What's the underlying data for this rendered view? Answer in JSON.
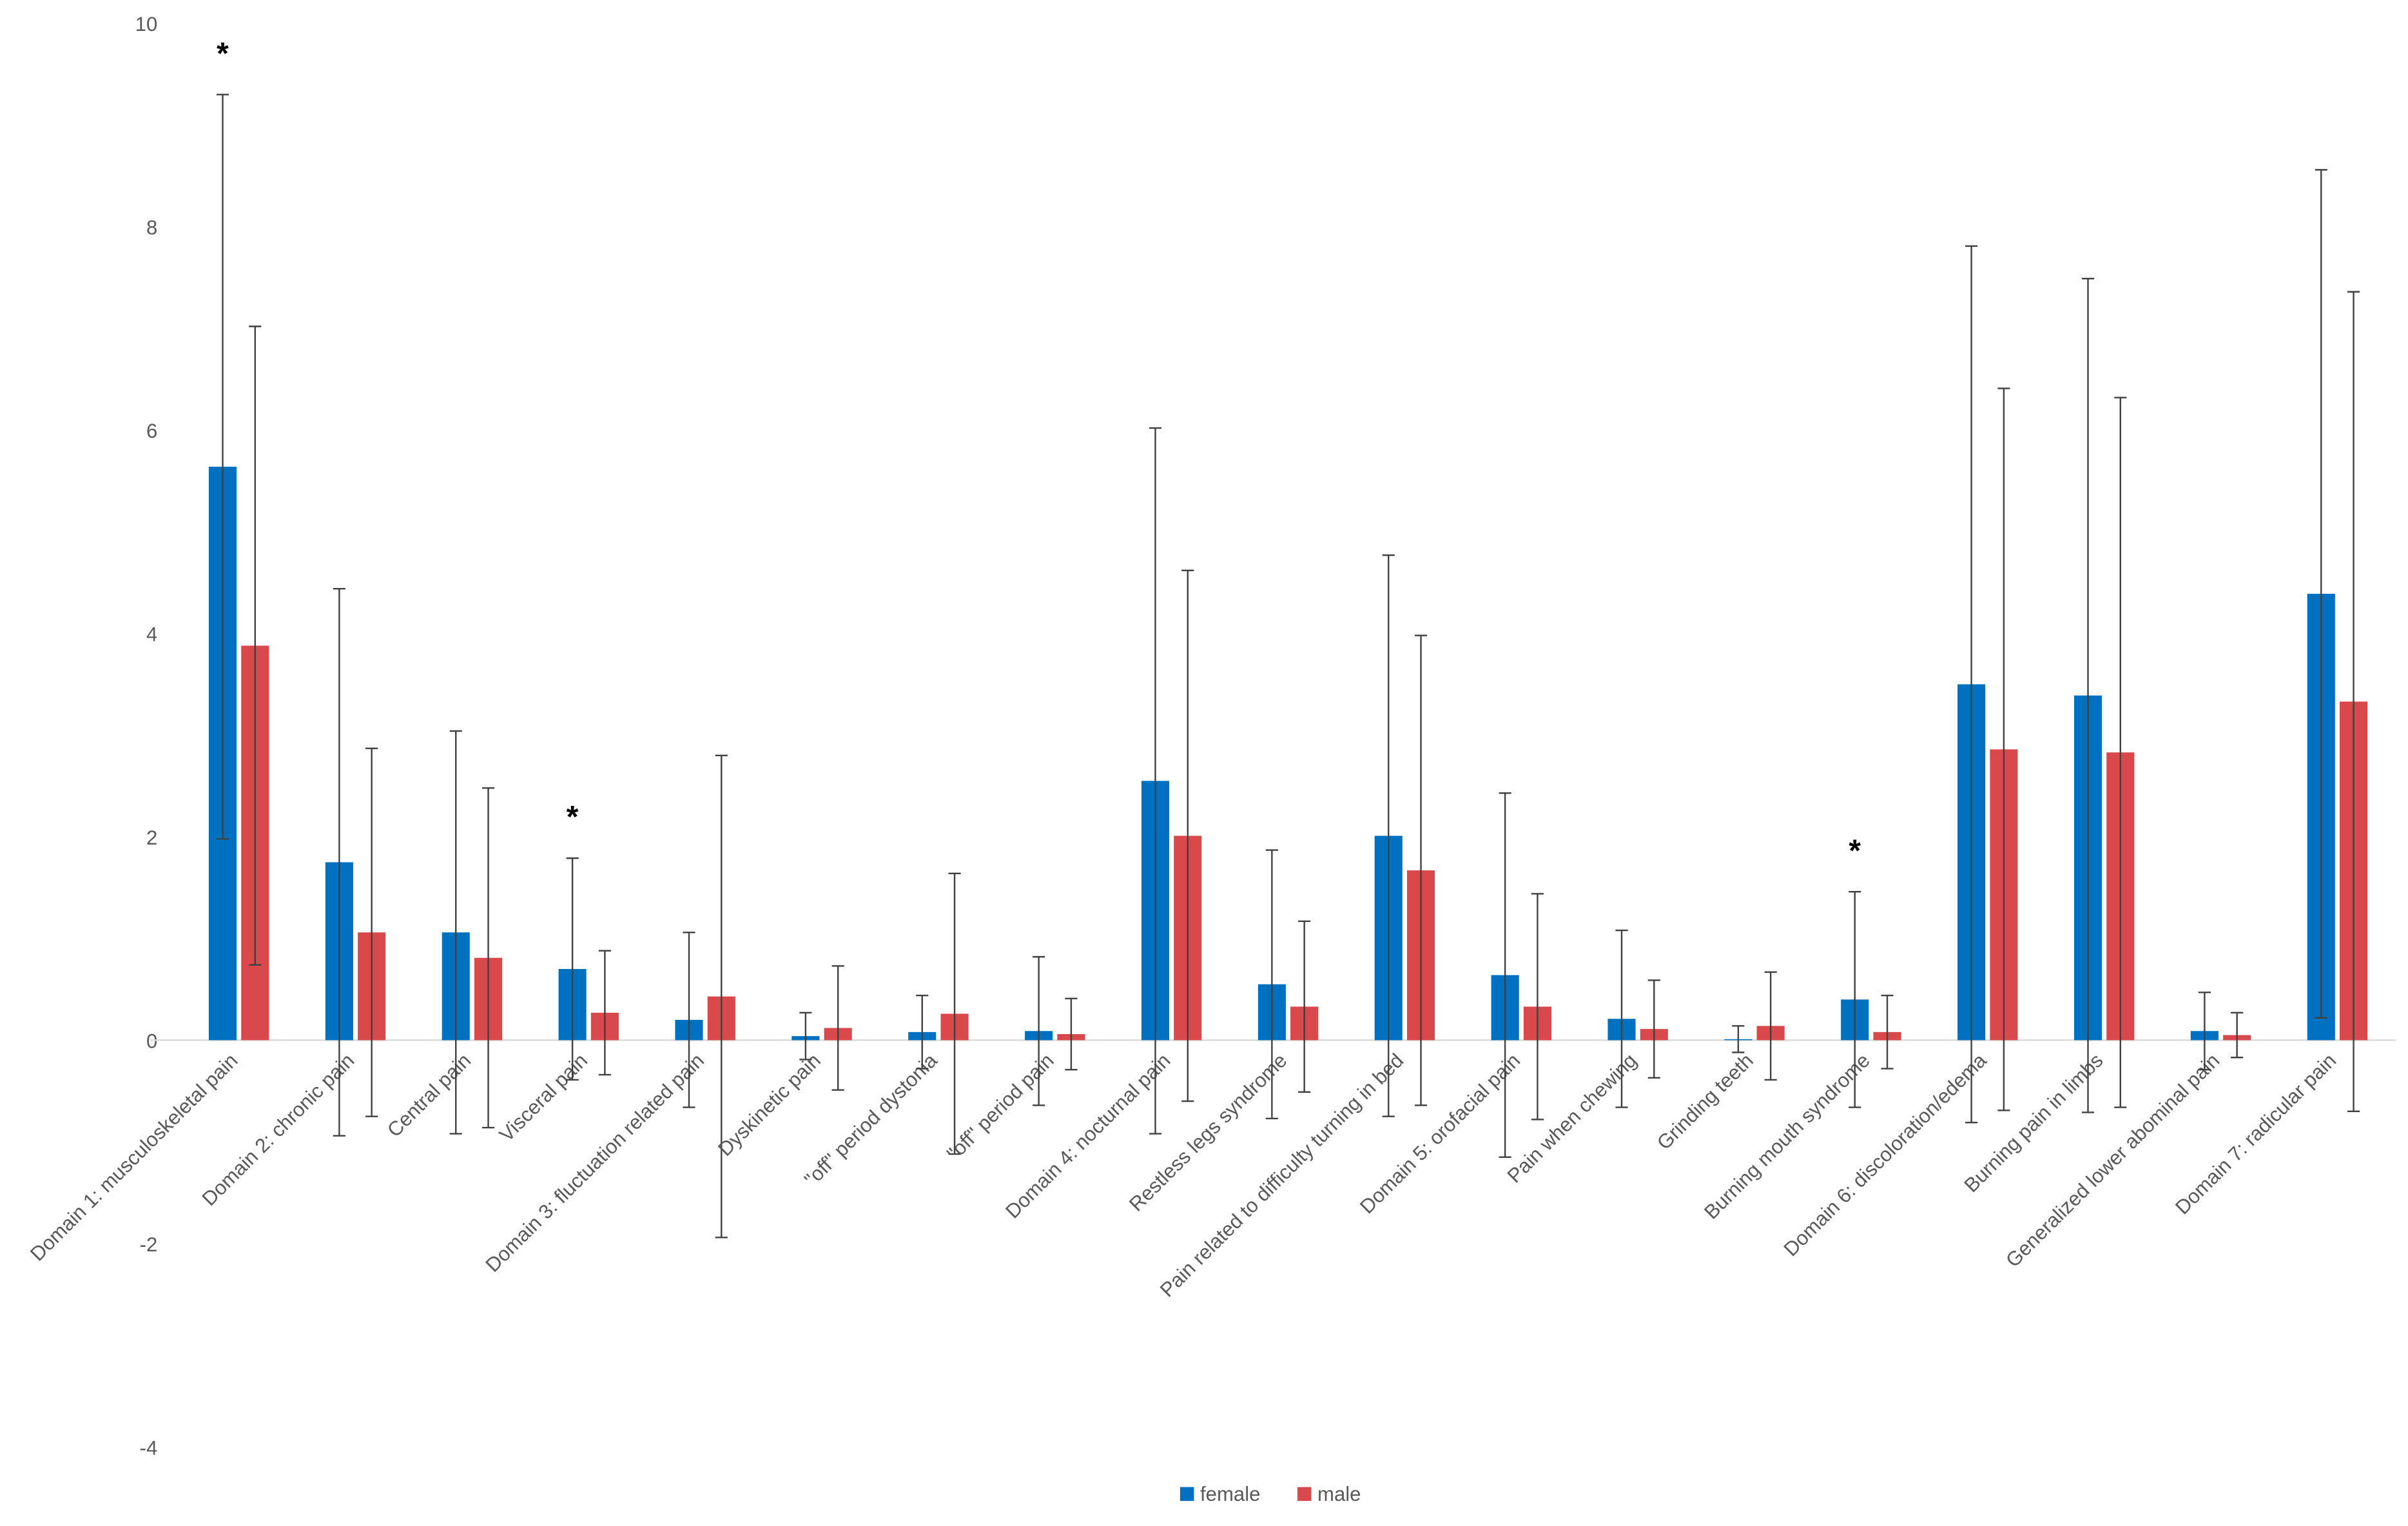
{
  "chart_data": {
    "type": "bar",
    "categories": [
      "Domain 1: musculoskeletal pain",
      "Domain 2: chronic pain",
      "Central pain",
      "Visceral pain",
      "Domain 3: fluctuation related pain",
      "Dyskinetic pain",
      "\"off\" period dystonia",
      "\"off\" period pain",
      "Domain 4: nocturnal pain",
      "Restless legs syndrome",
      "Pain related to difficulty turning in bed",
      "Domain 5: orofacial pain",
      "Pain when chewing",
      "Grinding teeth",
      "Burning mouth syndrome",
      "Domain 6: discoloration/edema",
      "Burning pain in limbs",
      "Generalized lower abominal pain",
      "Domain 7: radicular pain"
    ],
    "series": [
      {
        "name": "female",
        "color": "#0070c0",
        "values": [
          5.64,
          1.75,
          1.06,
          0.7,
          0.2,
          0.04,
          0.08,
          0.09,
          2.55,
          0.55,
          2.01,
          0.64,
          0.21,
          0.01,
          0.4,
          3.5,
          3.39,
          0.09,
          4.39
        ],
        "errors": [
          3.66,
          2.69,
          1.98,
          1.09,
          0.86,
          0.23,
          0.36,
          0.73,
          3.47,
          1.32,
          2.76,
          1.79,
          0.87,
          0.13,
          1.06,
          4.31,
          4.1,
          0.38,
          4.17
        ]
      },
      {
        "name": "male",
        "color": "#d9484a",
        "values": [
          3.88,
          1.06,
          0.81,
          0.27,
          0.43,
          0.12,
          0.26,
          0.06,
          2.01,
          0.33,
          1.67,
          0.33,
          0.11,
          0.14,
          0.08,
          2.86,
          2.83,
          0.05,
          3.33
        ],
        "errors": [
          3.14,
          1.81,
          1.67,
          0.61,
          2.37,
          0.61,
          1.38,
          0.35,
          2.61,
          0.84,
          2.31,
          1.11,
          0.48,
          0.53,
          0.36,
          3.55,
          3.49,
          0.22,
          4.03
        ]
      }
    ],
    "annotations": [
      {
        "label": "*",
        "category": "Domain 1: musculoskeletal pain"
      },
      {
        "label": "*",
        "category": "Visceral pain"
      },
      {
        "label": "*",
        "category": "Burning mouth syndrome"
      }
    ],
    "ylim": [
      -4,
      10
    ],
    "yticks": [
      -4,
      -2,
      0,
      2,
      4,
      6,
      8,
      10
    ],
    "grid": false,
    "legend": "bottom"
  }
}
